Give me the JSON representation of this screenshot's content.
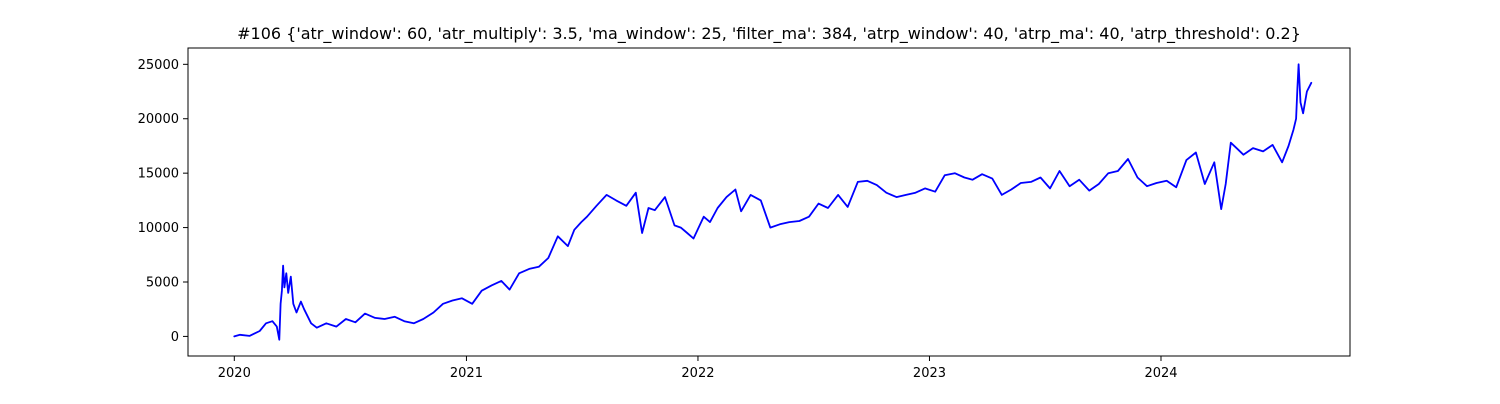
{
  "chart_data": {
    "type": "line",
    "title": "#106 {'atr_window': 60, 'atr_multiply': 3.5, 'ma_window': 25, 'filter_ma': 384, 'atrp_window': 40, 'atrp_ma': 40, 'atrp_threshold': 0.2}",
    "xlabel": "",
    "ylabel": "",
    "x_ticks": [
      "2020",
      "2021",
      "2022",
      "2023",
      "2024"
    ],
    "y_ticks": [
      "0",
      "5000",
      "10000",
      "15000",
      "20000",
      "25000"
    ],
    "xlim": [
      "2019-10-20",
      "2024-10-25"
    ],
    "ylim": [
      -1800,
      26500
    ],
    "grid": false,
    "legend": "none",
    "series": [
      {
        "color": "#0000ff",
        "x": [
          "2020-01-01",
          "2020-01-10",
          "2020-01-25",
          "2020-02-10",
          "2020-02-20",
          "2020-03-01",
          "2020-03-08",
          "2020-03-12",
          "2020-03-14",
          "2020-03-16",
          "2020-03-18",
          "2020-03-20",
          "2020-03-23",
          "2020-03-26",
          "2020-03-30",
          "2020-04-03",
          "2020-04-08",
          "2020-04-15",
          "2020-04-20",
          "2020-05-01",
          "2020-05-10",
          "2020-05-25",
          "2020-06-10",
          "2020-06-25",
          "2020-07-10",
          "2020-07-25",
          "2020-08-10",
          "2020-08-25",
          "2020-09-10",
          "2020-09-25",
          "2020-10-10",
          "2020-10-25",
          "2020-11-10",
          "2020-11-25",
          "2020-12-10",
          "2020-12-25",
          "2021-01-10",
          "2021-01-25",
          "2021-02-10",
          "2021-02-25",
          "2021-03-10",
          "2021-03-25",
          "2021-04-10",
          "2021-04-25",
          "2021-05-10",
          "2021-05-25",
          "2021-06-10",
          "2021-06-20",
          "2021-07-01",
          "2021-07-10",
          "2021-07-25",
          "2021-08-10",
          "2021-08-25",
          "2021-09-10",
          "2021-09-25",
          "2021-10-05",
          "2021-10-15",
          "2021-10-25",
          "2021-11-10",
          "2021-11-25",
          "2021-12-05",
          "2021-12-15",
          "2021-12-25",
          "2022-01-10",
          "2022-01-20",
          "2022-02-01",
          "2022-02-15",
          "2022-03-01",
          "2022-03-10",
          "2022-03-25",
          "2022-04-10",
          "2022-04-25",
          "2022-05-10",
          "2022-05-25",
          "2022-06-10",
          "2022-06-25",
          "2022-07-10",
          "2022-07-25",
          "2022-08-10",
          "2022-08-25",
          "2022-09-10",
          "2022-09-25",
          "2022-10-10",
          "2022-10-25",
          "2022-11-10",
          "2022-11-25",
          "2022-12-10",
          "2022-12-25",
          "2023-01-10",
          "2023-01-25",
          "2023-02-10",
          "2023-02-25",
          "2023-03-10",
          "2023-03-25",
          "2023-04-10",
          "2023-04-25",
          "2023-05-10",
          "2023-05-25",
          "2023-06-10",
          "2023-06-25",
          "2023-07-10",
          "2023-07-25",
          "2023-08-10",
          "2023-08-25",
          "2023-09-10",
          "2023-09-25",
          "2023-10-10",
          "2023-10-25",
          "2023-11-10",
          "2023-11-25",
          "2023-12-10",
          "2023-12-25",
          "2024-01-10",
          "2024-01-25",
          "2024-02-10",
          "2024-02-25",
          "2024-03-10",
          "2024-03-25",
          "2024-04-05",
          "2024-04-12",
          "2024-04-20",
          "2024-05-01",
          "2024-05-10",
          "2024-05-25",
          "2024-06-10",
          "2024-06-25",
          "2024-07-10",
          "2024-07-20",
          "2024-07-28",
          "2024-08-01",
          "2024-08-03",
          "2024-08-05",
          "2024-08-08",
          "2024-08-12",
          "2024-08-18",
          "2024-08-25"
        ],
        "y": [
          0,
          150,
          50,
          500,
          1200,
          1400,
          900,
          -300,
          3000,
          4200,
          6500,
          4500,
          5800,
          4000,
          5500,
          3000,
          2200,
          3200,
          2500,
          1200,
          800,
          1200,
          900,
          1600,
          1300,
          2100,
          1700,
          1600,
          1800,
          1400,
          1200,
          1600,
          2200,
          3000,
          3300,
          3500,
          3000,
          4200,
          4700,
          5100,
          4300,
          5800,
          6200,
          6400,
          7200,
          9200,
          8300,
          9800,
          10500,
          11000,
          12000,
          13000,
          12500,
          12000,
          13200,
          9500,
          11800,
          11600,
          12800,
          10200,
          10000,
          9500,
          9000,
          11000,
          10500,
          11800,
          12800,
          13500,
          11500,
          13000,
          12500,
          10000,
          10300,
          10500,
          10600,
          11000,
          12200,
          11800,
          13000,
          11900,
          14200,
          14300,
          13900,
          13200,
          12800,
          13000,
          13200,
          13600,
          13300,
          14800,
          15000,
          14600,
          14400,
          14900,
          14500,
          13000,
          13500,
          14100,
          14200,
          14600,
          13600,
          15200,
          13800,
          14400,
          13400,
          14000,
          15000,
          15200,
          16300,
          14600,
          13800,
          14100,
          14300,
          13700,
          16200,
          16900,
          14000,
          16000,
          11700,
          14000,
          17800,
          17200,
          16700,
          17300,
          17000,
          17600,
          16000,
          17500,
          19000,
          20000,
          22800,
          25000,
          21500,
          20500,
          22500,
          23300
        ]
      }
    ]
  }
}
